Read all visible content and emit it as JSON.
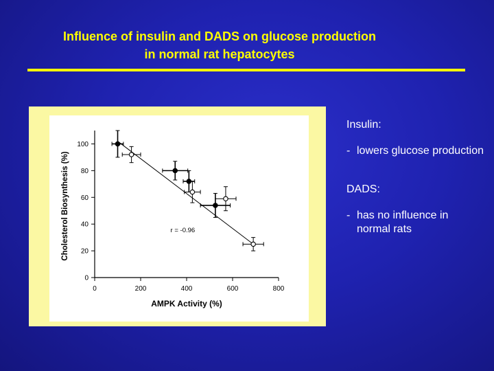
{
  "slide": {
    "title_line1": "Influence of insulin and DADS on glucose production",
    "title_line2": "in normal rat hepatocytes",
    "title_color": "#ffff00",
    "background_color": "#1f22b0"
  },
  "notes": {
    "insulin_header": "Insulin:",
    "insulin_dash": "-",
    "insulin_text": "lowers glucose production",
    "dads_header": "DADS:",
    "dads_dash": "-",
    "dads_text": "has no influence in normal rats"
  },
  "chart_data": {
    "type": "scatter",
    "xlabel": "AMPK  Activity  (%)",
    "ylabel": "Cholesterol Biosynthesis (%)",
    "xlim": [
      0,
      800
    ],
    "ylim": [
      0,
      110
    ],
    "xticks": [
      0,
      200,
      400,
      600,
      800
    ],
    "yticks": [
      0,
      20,
      40,
      60,
      80,
      100
    ],
    "grid": false,
    "annotation": "r  = -0.96",
    "series": [
      {
        "marker": "filled-circle",
        "points": [
          {
            "x": 100,
            "y": 100,
            "xerr": 25,
            "yerr": 10
          },
          {
            "x": 350,
            "y": 80,
            "xerr": 55,
            "yerr": 7
          },
          {
            "x": 410,
            "y": 72,
            "xerr": 25,
            "yerr": 8
          },
          {
            "x": 525,
            "y": 54,
            "xerr": 65,
            "yerr": 9
          }
        ]
      },
      {
        "marker": "open-circle",
        "points": [
          {
            "x": 160,
            "y": 92,
            "xerr": 40,
            "yerr": 6
          },
          {
            "x": 425,
            "y": 64,
            "xerr": 35,
            "yerr": 8
          },
          {
            "x": 570,
            "y": 59,
            "xerr": 45,
            "yerr": 9
          },
          {
            "x": 690,
            "y": 25,
            "xerr": 45,
            "yerr": 5
          }
        ]
      }
    ],
    "trendline": {
      "x": [
        100,
        690
      ],
      "y": [
        102,
        25
      ]
    }
  }
}
